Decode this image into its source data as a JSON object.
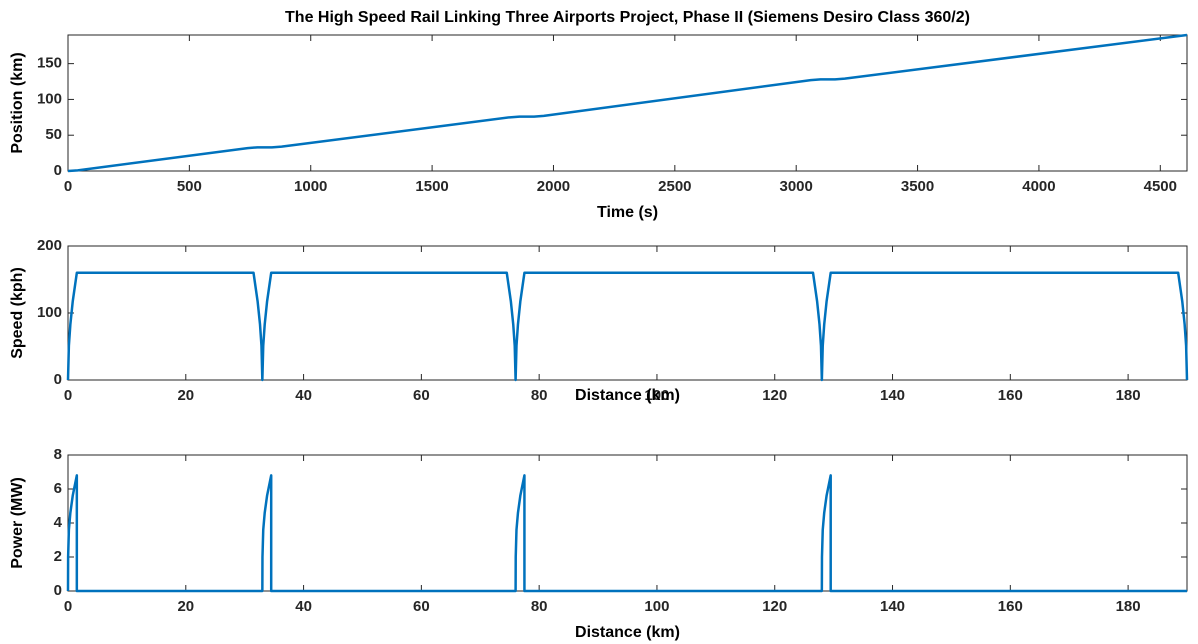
{
  "chart_data": [
    {
      "type": "line",
      "title": "The High Speed Rail Linking Three Airports Project, Phase II (Siemens Desiro Class 360/2)",
      "xlabel": "Time (s)",
      "ylabel": "Position (km)",
      "color": "#0072bd",
      "x": [
        0,
        40,
        740,
        780,
        840,
        880,
        1820,
        1860,
        1920,
        1960,
        3060,
        3100,
        3160,
        3200,
        4610
      ],
      "values": [
        0,
        0.9,
        32,
        33,
        33,
        34,
        75,
        76,
        76,
        77,
        127,
        128,
        128,
        129,
        190
      ],
      "xlim": [
        0,
        4610
      ],
      "xticks": [
        0,
        500,
        1000,
        1500,
        2000,
        2500,
        3000,
        3500,
        4000,
        4500
      ],
      "ylim": [
        0,
        190
      ],
      "yticks": [
        0,
        50,
        100,
        150
      ]
    },
    {
      "type": "line",
      "xlabel": "Distance (km)",
      "ylabel": "Speed (kph)",
      "color": "#0072bd",
      "x": [
        0,
        0.15,
        0.4,
        0.8,
        1.5,
        31.5,
        32.2,
        32.6,
        32.85,
        33,
        33.15,
        33.4,
        33.8,
        34.5,
        74.5,
        75.2,
        75.6,
        75.85,
        76,
        76.15,
        76.4,
        76.8,
        77.5,
        126.5,
        127.2,
        127.6,
        127.85,
        128,
        128.15,
        128.4,
        128.8,
        129.5,
        188.5,
        189.2,
        189.6,
        189.85,
        190
      ],
      "values": [
        0,
        51,
        83,
        117,
        160,
        160,
        117,
        83,
        51,
        0,
        51,
        83,
        117,
        160,
        160,
        117,
        83,
        51,
        0,
        51,
        83,
        117,
        160,
        160,
        117,
        83,
        51,
        0,
        51,
        83,
        117,
        160,
        160,
        117,
        83,
        51,
        0
      ],
      "xlim": [
        0,
        190
      ],
      "xticks": [
        0,
        20,
        40,
        60,
        80,
        100,
        120,
        140,
        160,
        180
      ],
      "ylim": [
        0,
        200
      ],
      "yticks": [
        0,
        100,
        200
      ]
    },
    {
      "type": "line",
      "xlabel": "Distance (km)",
      "ylabel": "Power (MW)",
      "color": "#0072bd",
      "x": [
        0,
        0.02,
        0.15,
        0.4,
        0.8,
        1.5,
        1.5,
        33,
        33.02,
        33.15,
        33.4,
        33.8,
        34.5,
        34.5,
        76,
        76.02,
        76.15,
        76.4,
        76.8,
        77.5,
        77.5,
        128,
        128.02,
        128.15,
        128.4,
        128.8,
        129.5,
        129.5,
        190
      ],
      "values": [
        0,
        2,
        3.6,
        4.6,
        5.6,
        6.8,
        0,
        0,
        2,
        3.6,
        4.6,
        5.6,
        6.8,
        0,
        0,
        2,
        3.6,
        4.6,
        5.6,
        6.8,
        0,
        0,
        2,
        3.6,
        4.6,
        5.6,
        6.8,
        0,
        0
      ],
      "xlim": [
        0,
        190
      ],
      "xticks": [
        0,
        20,
        40,
        60,
        80,
        100,
        120,
        140,
        160,
        180
      ],
      "ylim": [
        0,
        8
      ],
      "yticks": [
        0,
        2,
        4,
        6,
        8
      ]
    }
  ]
}
